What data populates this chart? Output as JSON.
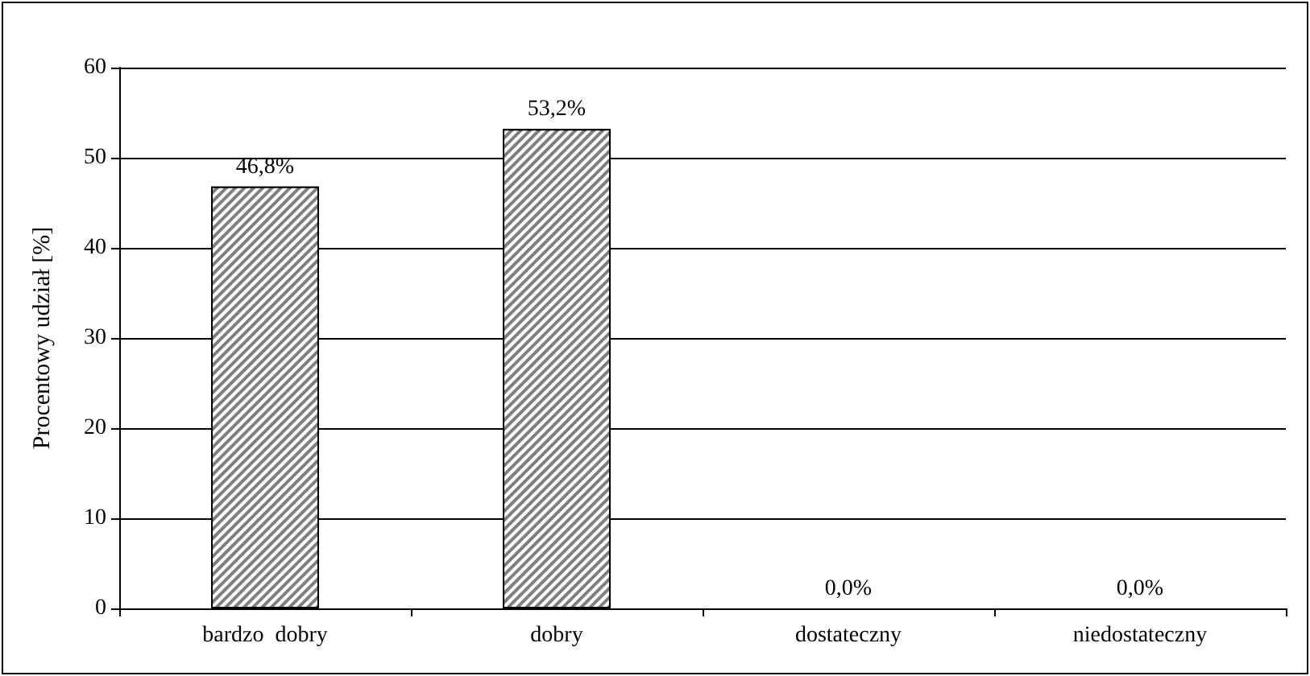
{
  "chart_data": {
    "type": "bar",
    "ylabel": "Procentowy udział [%]",
    "categories": [
      "bardzo  dobry",
      "dobry",
      "dostateczny",
      "niedostateczny"
    ],
    "values": [
      46.8,
      53.2,
      0,
      0
    ],
    "value_labels": [
      "46,8%",
      "53,2%",
      "0,0%",
      "0,0%"
    ],
    "color": "#7f7f7f",
    "ylim": [
      0,
      60
    ],
    "yticks": [
      0,
      10,
      20,
      30,
      40,
      50,
      60
    ],
    "grid": "y"
  }
}
